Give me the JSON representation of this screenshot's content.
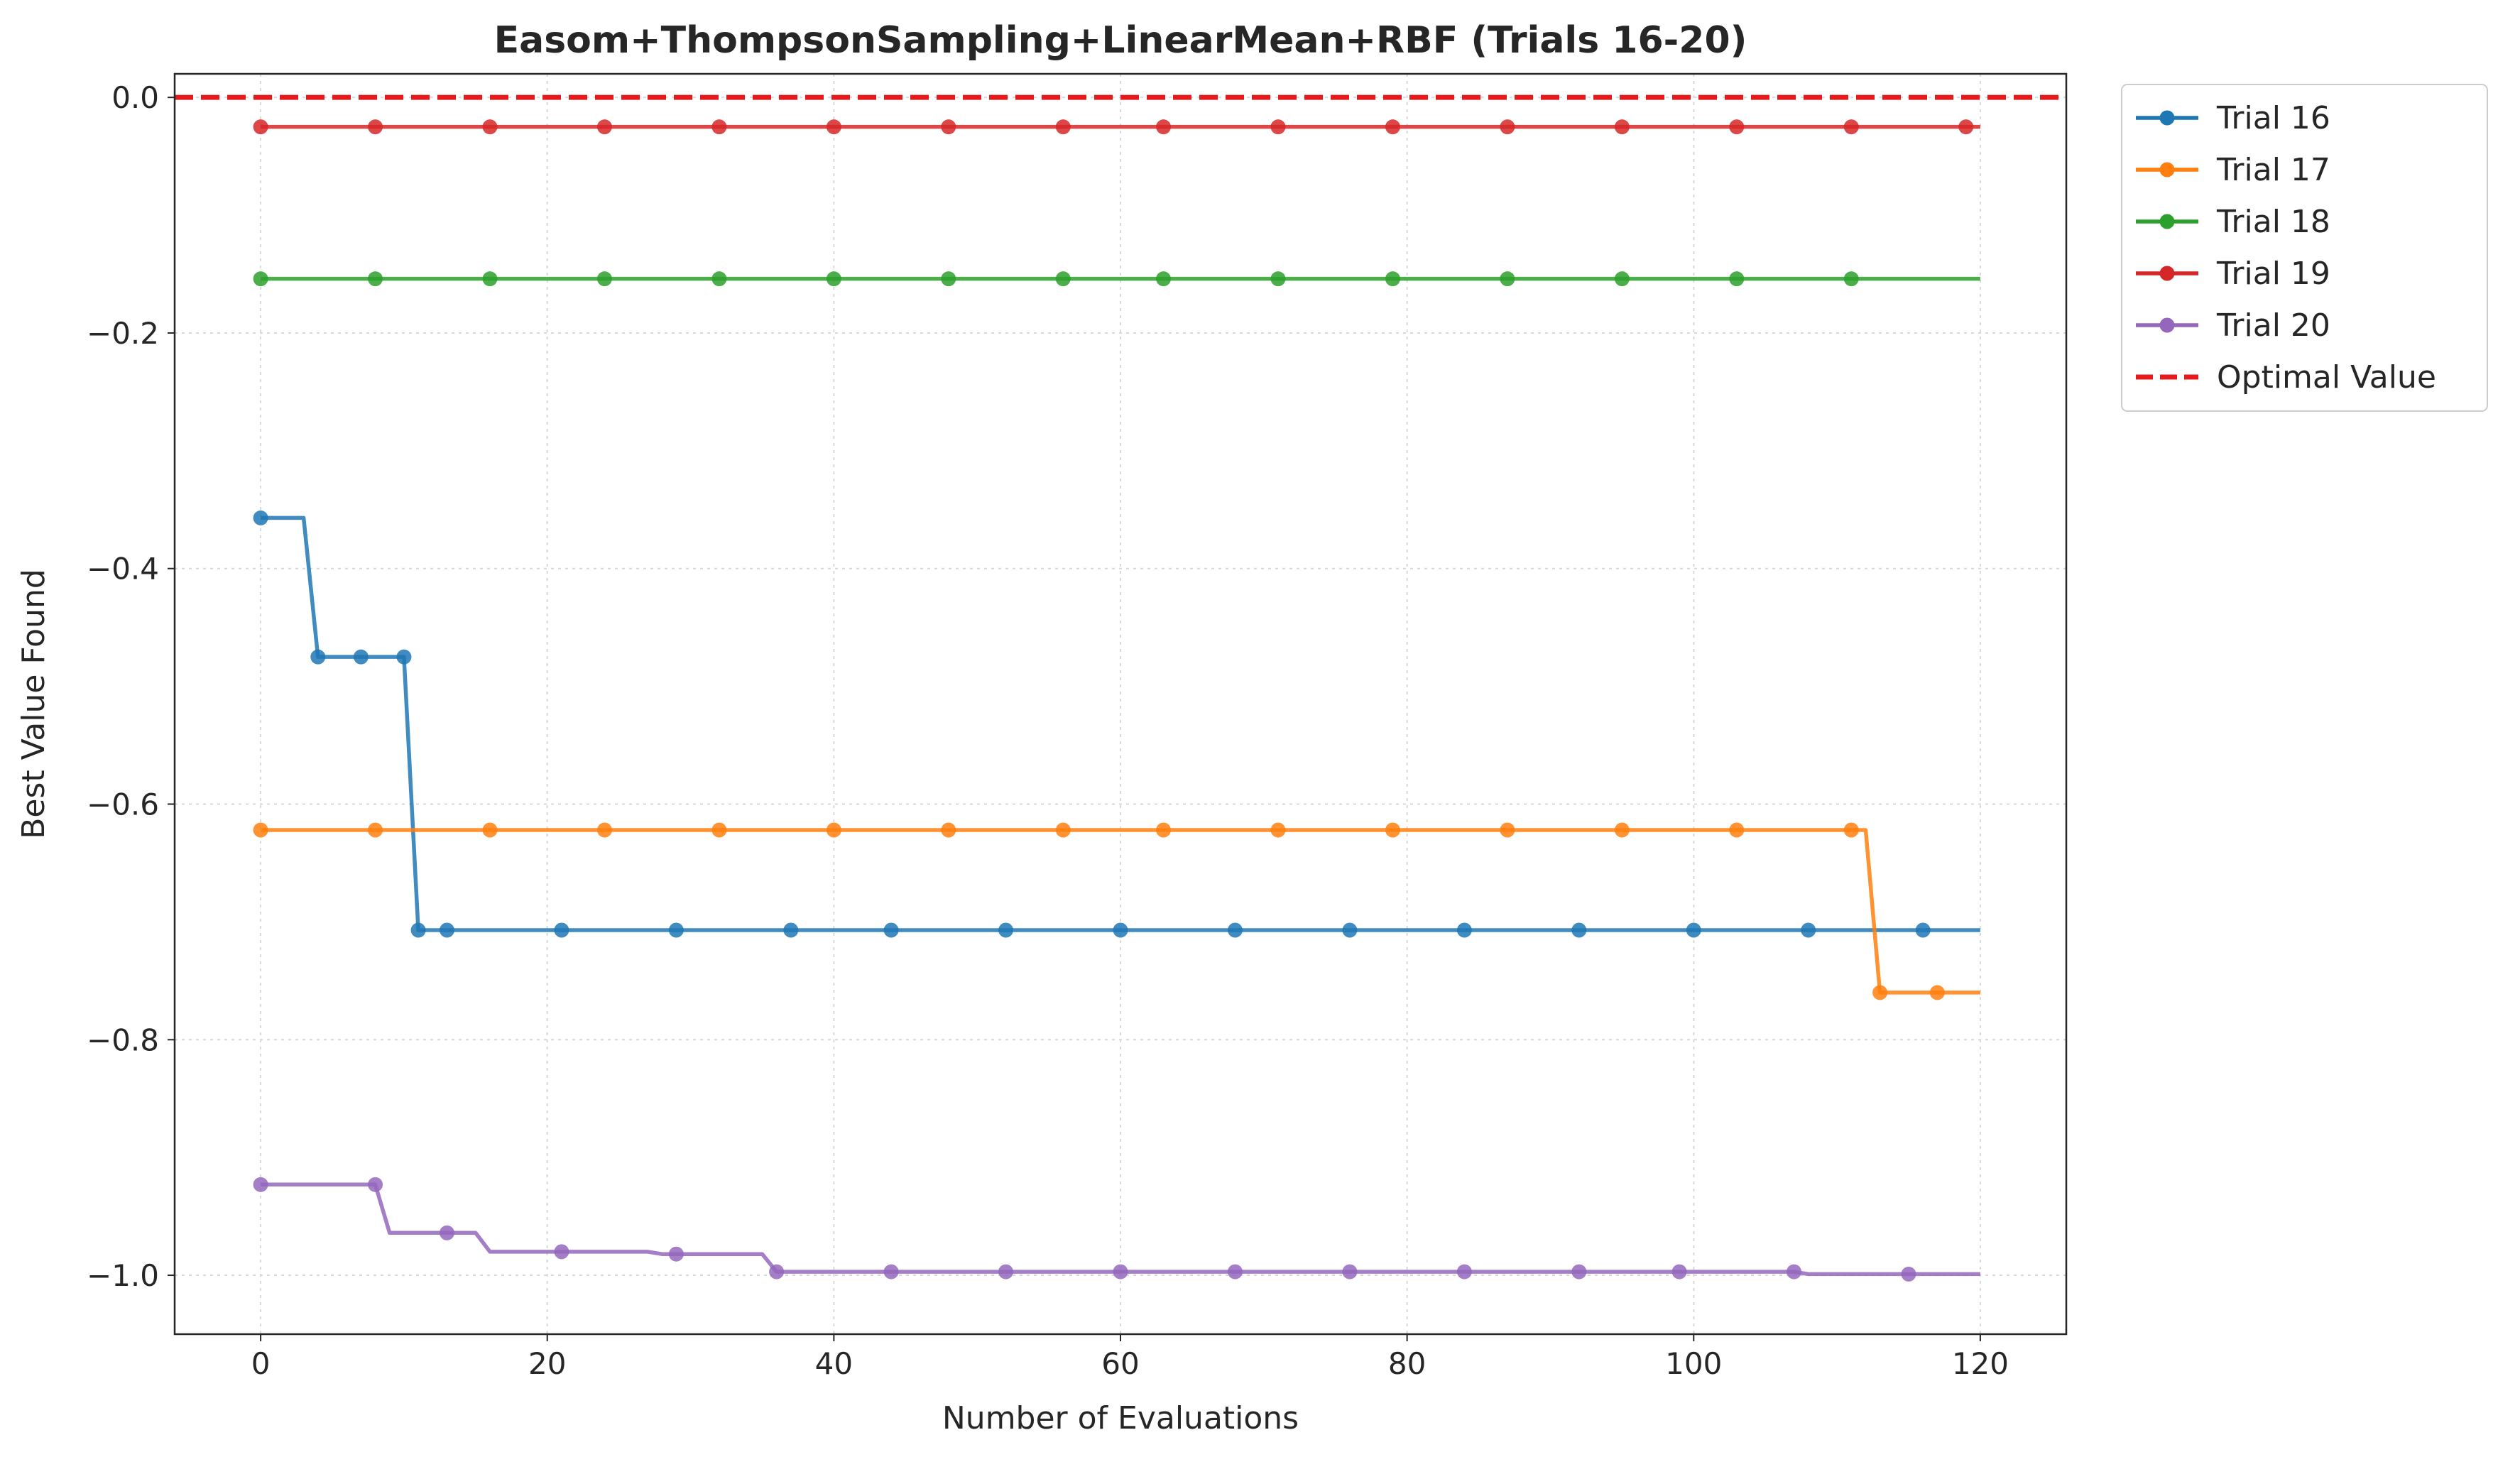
{
  "chart_data": {
    "type": "line",
    "title": "Easom+ThompsonSampling+LinearMean+RBF (Trials 16-20)",
    "xlabel": "Number of Evaluations",
    "ylabel": "Best Value Found",
    "xlim": [
      -6,
      126
    ],
    "ylim": [
      -1.05,
      0.02
    ],
    "xticks": [
      0,
      20,
      40,
      60,
      80,
      100,
      120
    ],
    "xtick_labels": [
      "0",
      "20",
      "40",
      "60",
      "80",
      "100",
      "120"
    ],
    "yticks": [
      0.0,
      -0.2,
      -0.4,
      -0.6,
      -0.8,
      -1.0
    ],
    "ytick_labels": [
      "0.0",
      "−0.2",
      "−0.4",
      "−0.6",
      "−0.8",
      "−1.0"
    ],
    "grid": true,
    "legend_position": "outside-top-right",
    "series": [
      {
        "name": "Trial 16",
        "color": "#1f77b4",
        "line": [
          [
            0,
            -0.357
          ],
          [
            3,
            -0.357
          ],
          [
            4,
            -0.475
          ],
          [
            10,
            -0.475
          ],
          [
            11,
            -0.707
          ],
          [
            120,
            -0.707
          ]
        ],
        "markers": [
          [
            0,
            -0.357
          ],
          [
            4,
            -0.475
          ],
          [
            7,
            -0.475
          ],
          [
            10,
            -0.475
          ],
          [
            11,
            -0.707
          ],
          [
            13,
            -0.707
          ],
          [
            21,
            -0.707
          ],
          [
            29,
            -0.707
          ],
          [
            37,
            -0.707
          ],
          [
            44,
            -0.707
          ],
          [
            52,
            -0.707
          ],
          [
            60,
            -0.707
          ],
          [
            68,
            -0.707
          ],
          [
            76,
            -0.707
          ],
          [
            84,
            -0.707
          ],
          [
            92,
            -0.707
          ],
          [
            100,
            -0.707
          ],
          [
            108,
            -0.707
          ],
          [
            116,
            -0.707
          ]
        ]
      },
      {
        "name": "Trial 17",
        "color": "#ff7f0e",
        "line": [
          [
            0,
            -0.622
          ],
          [
            112,
            -0.622
          ],
          [
            113,
            -0.76
          ],
          [
            120,
            -0.76
          ]
        ],
        "markers": [
          [
            0,
            -0.622
          ],
          [
            8,
            -0.622
          ],
          [
            16,
            -0.622
          ],
          [
            24,
            -0.622
          ],
          [
            32,
            -0.622
          ],
          [
            40,
            -0.622
          ],
          [
            48,
            -0.622
          ],
          [
            56,
            -0.622
          ],
          [
            63,
            -0.622
          ],
          [
            71,
            -0.622
          ],
          [
            79,
            -0.622
          ],
          [
            87,
            -0.622
          ],
          [
            95,
            -0.622
          ],
          [
            103,
            -0.622
          ],
          [
            111,
            -0.622
          ],
          [
            113,
            -0.76
          ],
          [
            117,
            -0.76
          ]
        ]
      },
      {
        "name": "Trial 18",
        "color": "#2ca02c",
        "line": [
          [
            0,
            -0.154
          ],
          [
            120,
            -0.154
          ]
        ],
        "markers": [
          [
            0,
            -0.154
          ],
          [
            8,
            -0.154
          ],
          [
            16,
            -0.154
          ],
          [
            24,
            -0.154
          ],
          [
            32,
            -0.154
          ],
          [
            40,
            -0.154
          ],
          [
            48,
            -0.154
          ],
          [
            56,
            -0.154
          ],
          [
            63,
            -0.154
          ],
          [
            71,
            -0.154
          ],
          [
            79,
            -0.154
          ],
          [
            87,
            -0.154
          ],
          [
            95,
            -0.154
          ],
          [
            103,
            -0.154
          ],
          [
            111,
            -0.154
          ]
        ]
      },
      {
        "name": "Trial 19",
        "color": "#d62728",
        "line": [
          [
            0,
            -0.025
          ],
          [
            120,
            -0.025
          ]
        ],
        "markers": [
          [
            0,
            -0.025
          ],
          [
            8,
            -0.025
          ],
          [
            16,
            -0.025
          ],
          [
            24,
            -0.025
          ],
          [
            32,
            -0.025
          ],
          [
            40,
            -0.025
          ],
          [
            48,
            -0.025
          ],
          [
            56,
            -0.025
          ],
          [
            63,
            -0.025
          ],
          [
            71,
            -0.025
          ],
          [
            79,
            -0.025
          ],
          [
            87,
            -0.025
          ],
          [
            95,
            -0.025
          ],
          [
            103,
            -0.025
          ],
          [
            111,
            -0.025
          ],
          [
            119,
            -0.025
          ]
        ]
      },
      {
        "name": "Trial 20",
        "color": "#9467bd",
        "line": [
          [
            0,
            -0.923
          ],
          [
            8,
            -0.923
          ],
          [
            9,
            -0.964
          ],
          [
            15,
            -0.964
          ],
          [
            16,
            -0.98
          ],
          [
            27,
            -0.98
          ],
          [
            28,
            -0.982
          ],
          [
            35,
            -0.982
          ],
          [
            36,
            -0.997
          ],
          [
            107,
            -0.997
          ],
          [
            108,
            -0.999
          ],
          [
            120,
            -0.999
          ]
        ],
        "markers": [
          [
            0,
            -0.923
          ],
          [
            8,
            -0.923
          ],
          [
            13,
            -0.964
          ],
          [
            21,
            -0.98
          ],
          [
            29,
            -0.982
          ],
          [
            36,
            -0.997
          ],
          [
            44,
            -0.997
          ],
          [
            52,
            -0.997
          ],
          [
            60,
            -0.997
          ],
          [
            68,
            -0.997
          ],
          [
            76,
            -0.997
          ],
          [
            84,
            -0.997
          ],
          [
            92,
            -0.997
          ],
          [
            99,
            -0.997
          ],
          [
            107,
            -0.997
          ],
          [
            115,
            -0.999
          ]
        ]
      }
    ],
    "reference_line": {
      "name": "Optimal Value",
      "y": 0.0,
      "color": "#e41a1c",
      "style": "dashed"
    }
  }
}
